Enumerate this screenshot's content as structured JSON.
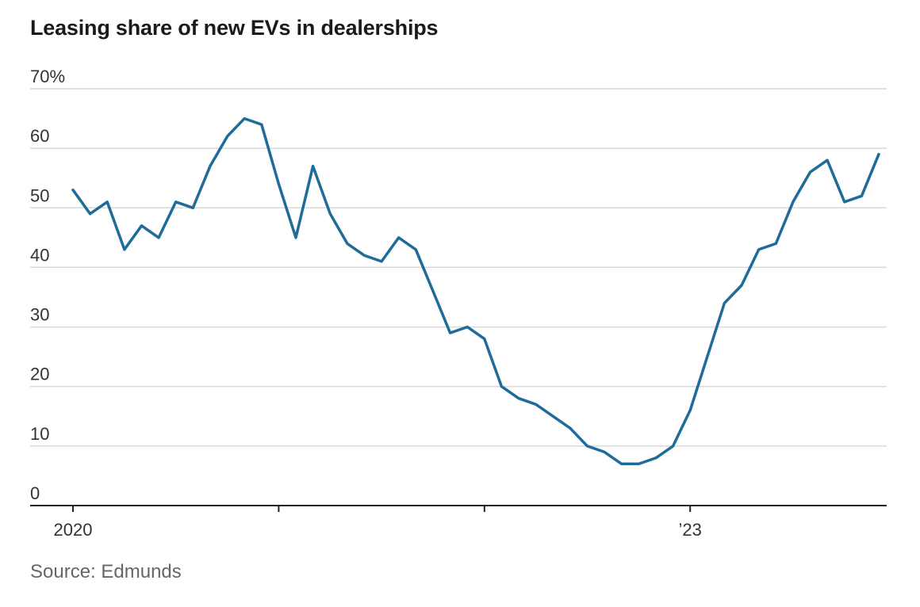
{
  "chart_data": {
    "type": "line",
    "title": "Leasing share of new EVs in dealerships",
    "source": "Source: Edmunds",
    "xlabel": "",
    "ylabel": "",
    "ylim": [
      0,
      70
    ],
    "y_ticks": [
      {
        "value": 70,
        "label": "70%"
      },
      {
        "value": 60,
        "label": "60"
      },
      {
        "value": 50,
        "label": "50"
      },
      {
        "value": 40,
        "label": "40"
      },
      {
        "value": 30,
        "label": "30"
      },
      {
        "value": 20,
        "label": "20"
      },
      {
        "value": 10,
        "label": "10"
      },
      {
        "value": 0,
        "label": "0"
      }
    ],
    "x_range": [
      0,
      48
    ],
    "x_ticks": [
      {
        "value": 0,
        "label": "2020"
      },
      {
        "value": 12,
        "label": ""
      },
      {
        "value": 24,
        "label": ""
      },
      {
        "value": 36,
        "label": "’23"
      }
    ],
    "series": [
      {
        "name": "Leasing share",
        "color": "#1f6b99",
        "x": [
          0,
          1,
          2,
          3,
          4,
          5,
          6,
          7,
          8,
          9,
          10,
          11,
          12,
          13,
          14,
          15,
          16,
          17,
          18,
          19,
          20,
          21,
          22,
          23,
          24,
          25,
          26,
          27,
          28,
          29,
          30,
          31,
          32,
          33,
          34,
          35,
          36,
          37,
          38,
          39,
          40,
          41,
          42,
          43,
          44,
          45,
          46,
          47
        ],
        "values": [
          53,
          49,
          51,
          43,
          47,
          45,
          51,
          50,
          57,
          62,
          65,
          64,
          54,
          45,
          57,
          49,
          44,
          42,
          41,
          45,
          43,
          36,
          29,
          30,
          28,
          20,
          18,
          17,
          15,
          13,
          10,
          9,
          7,
          7,
          8,
          10,
          16,
          25,
          34,
          37,
          43,
          44,
          51,
          56,
          58,
          51,
          52,
          59
        ]
      }
    ]
  }
}
